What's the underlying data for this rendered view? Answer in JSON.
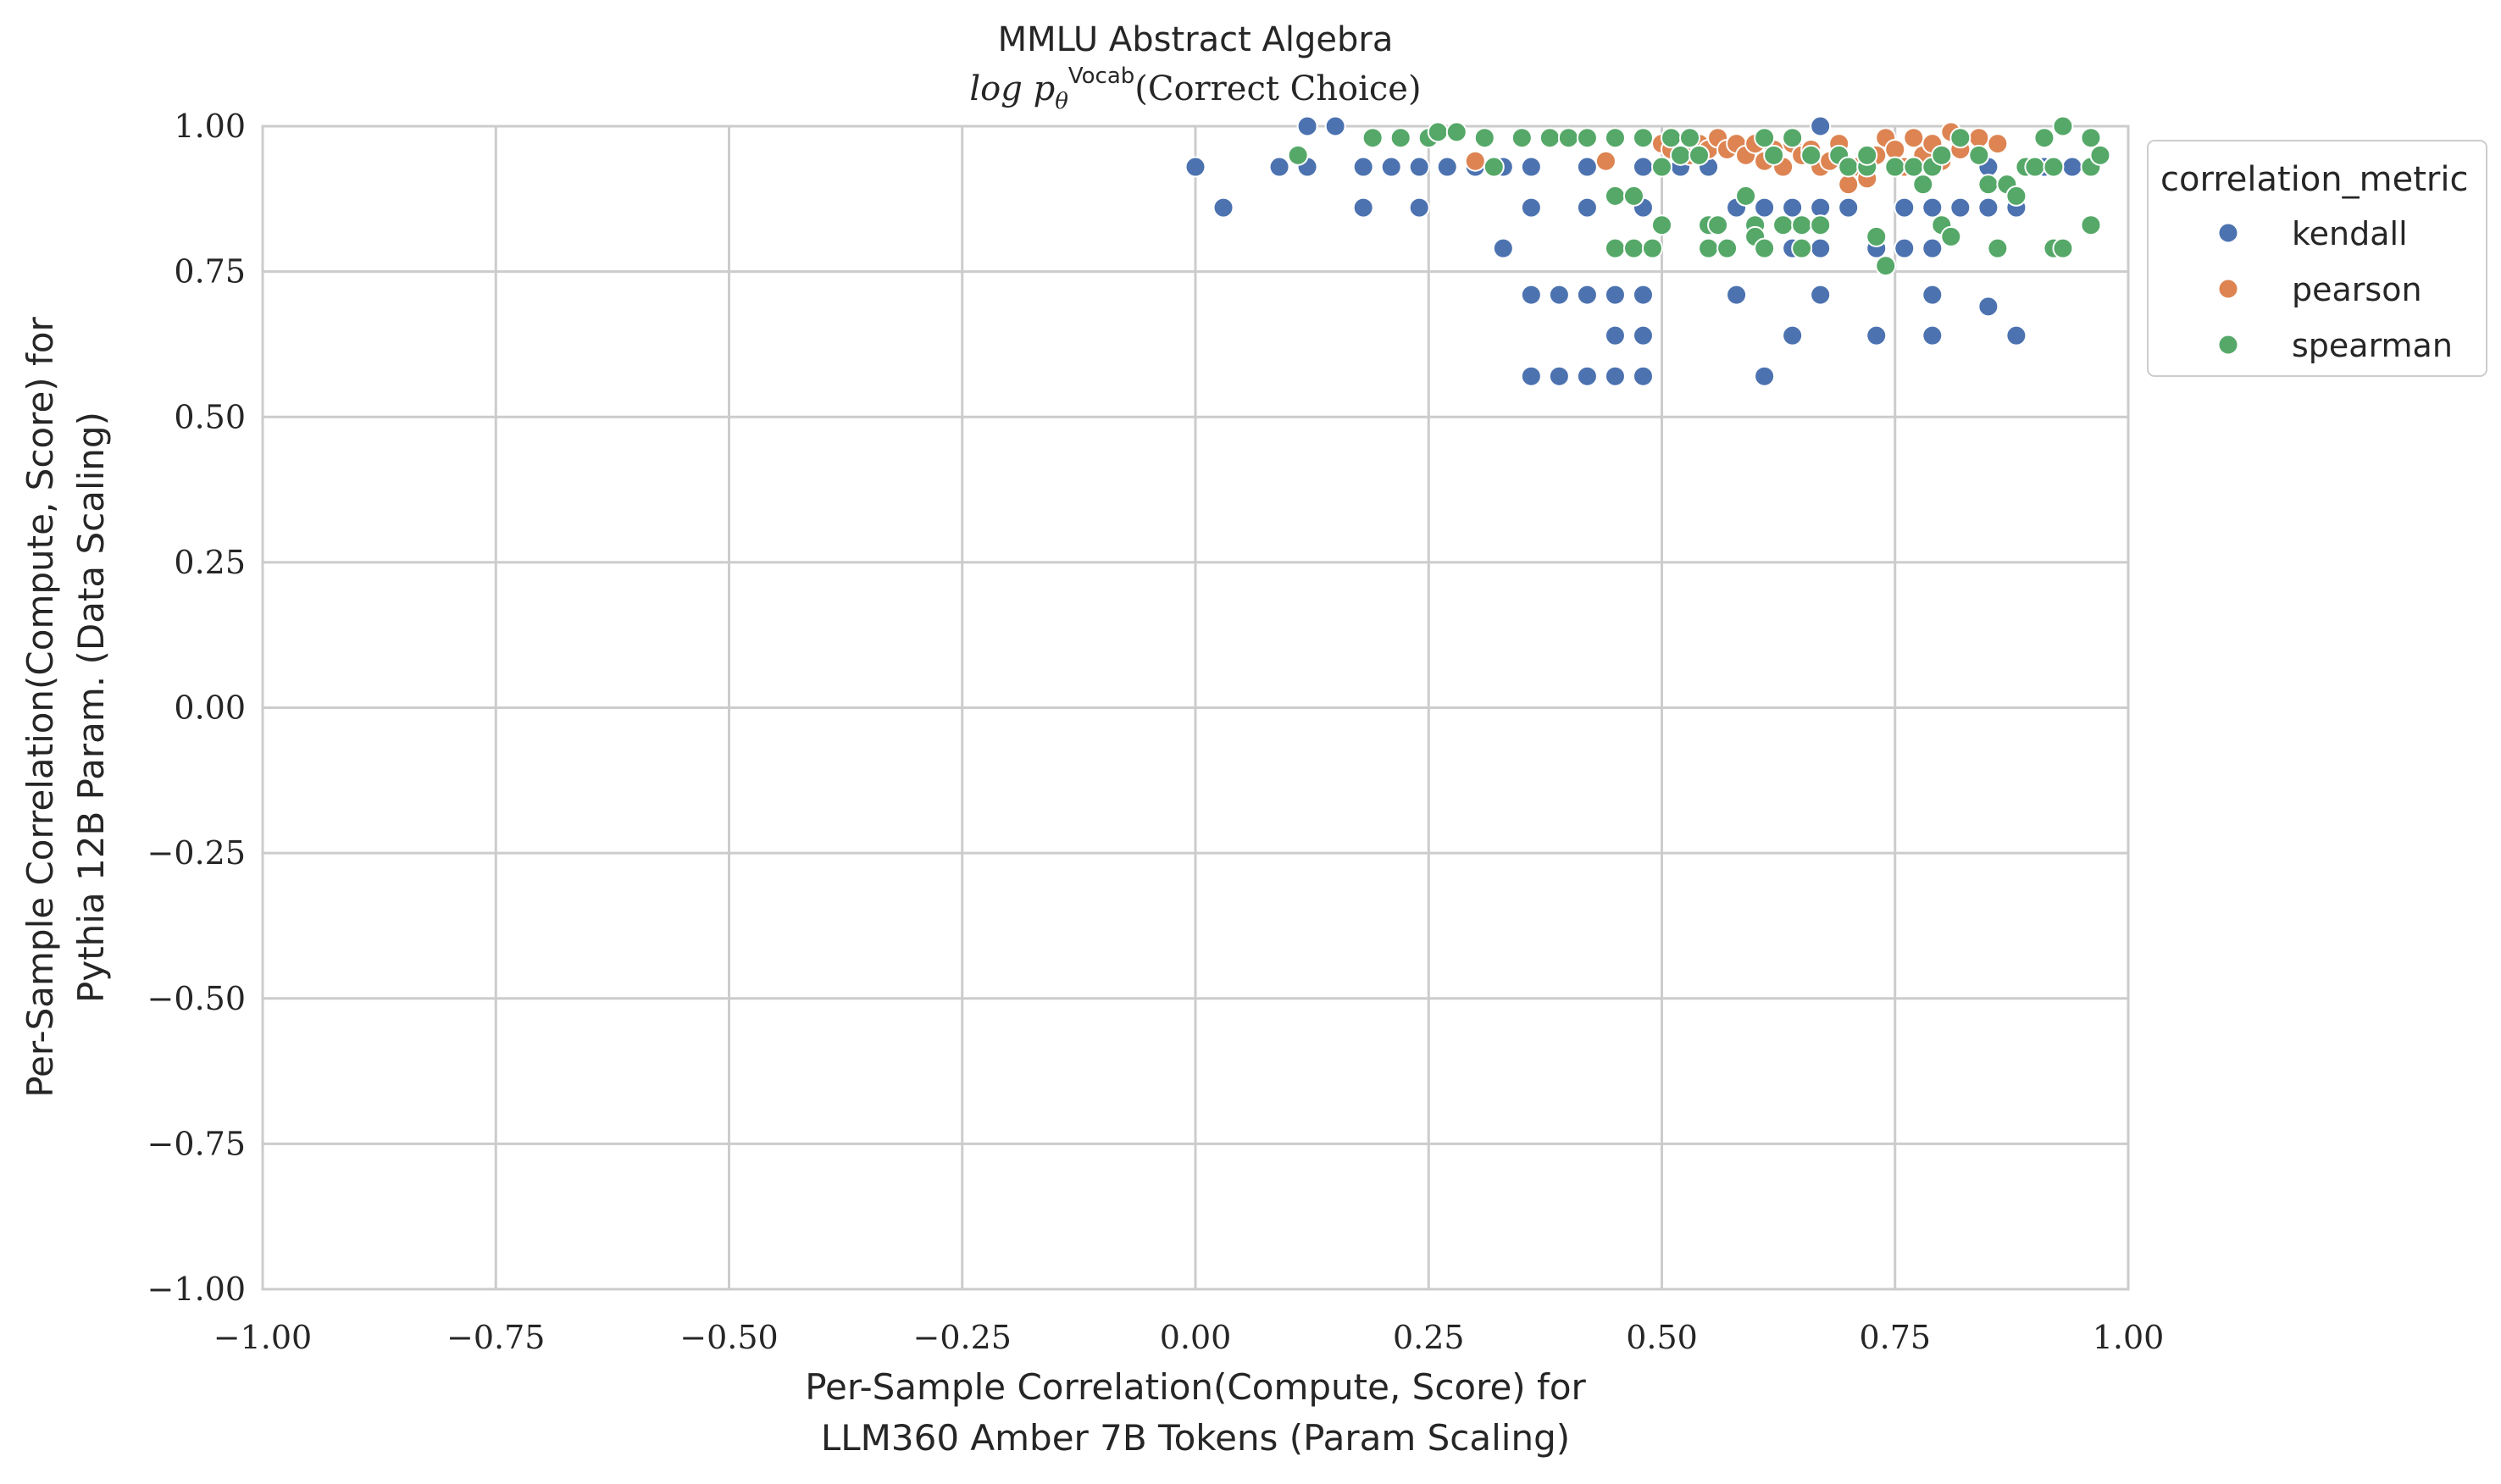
{
  "chart_data": {
    "type": "scatter",
    "title": "MMLU Abstract Algebra",
    "subtitle": {
      "prefix": "log p",
      "subscript": "θ",
      "superscript": "Vocab",
      "suffix": "(Correct Choice)"
    },
    "xlabel": [
      "Per-Sample Correlation(Compute, Score) for",
      "LLM360 Amber 7B Tokens (Param Scaling)"
    ],
    "ylabel": [
      "Per-Sample Correlation(Compute, Score) for",
      "Pythia 12B Param. (Data Scaling)"
    ],
    "xlim": [
      -1.0,
      1.0
    ],
    "ylim": [
      -1.0,
      1.0
    ],
    "xticks": [
      -1.0,
      -0.75,
      -0.5,
      -0.25,
      0.0,
      0.25,
      0.5,
      0.75,
      1.0
    ],
    "yticks": [
      -1.0,
      -0.75,
      -0.5,
      -0.25,
      0.0,
      0.25,
      0.5,
      0.75,
      1.0
    ],
    "xtick_labels": [
      "−1.00",
      "−0.75",
      "−0.50",
      "−0.25",
      "0.00",
      "0.25",
      "0.50",
      "0.75",
      "1.00"
    ],
    "ytick_labels": [
      "−1.00",
      "−0.75",
      "−0.50",
      "−0.25",
      "0.00",
      "0.25",
      "0.50",
      "0.75",
      "1.00"
    ],
    "grid": true,
    "legend": {
      "title": "correlation_metric",
      "placement": "outside-right-top"
    },
    "series": [
      {
        "name": "kendall",
        "color": "#4c72b0",
        "points": [
          [
            0.0,
            0.93
          ],
          [
            0.03,
            0.86
          ],
          [
            0.09,
            0.93
          ],
          [
            0.12,
            0.93
          ],
          [
            0.12,
            1.0
          ],
          [
            0.15,
            1.0
          ],
          [
            0.18,
            0.93
          ],
          [
            0.18,
            0.86
          ],
          [
            0.21,
            0.93
          ],
          [
            0.24,
            0.93
          ],
          [
            0.24,
            0.86
          ],
          [
            0.27,
            0.93
          ],
          [
            0.3,
            0.93
          ],
          [
            0.33,
            0.93
          ],
          [
            0.33,
            0.79
          ],
          [
            0.36,
            0.93
          ],
          [
            0.36,
            0.86
          ],
          [
            0.36,
            0.71
          ],
          [
            0.36,
            0.57
          ],
          [
            0.39,
            0.71
          ],
          [
            0.39,
            0.57
          ],
          [
            0.42,
            0.93
          ],
          [
            0.42,
            0.86
          ],
          [
            0.42,
            0.71
          ],
          [
            0.42,
            0.57
          ],
          [
            0.45,
            0.71
          ],
          [
            0.45,
            0.64
          ],
          [
            0.45,
            0.57
          ],
          [
            0.48,
            0.93
          ],
          [
            0.48,
            0.86
          ],
          [
            0.48,
            0.71
          ],
          [
            0.48,
            0.64
          ],
          [
            0.48,
            0.57
          ],
          [
            0.52,
            0.93
          ],
          [
            0.55,
            0.93
          ],
          [
            0.58,
            0.86
          ],
          [
            0.58,
            0.71
          ],
          [
            0.61,
            0.86
          ],
          [
            0.61,
            0.79
          ],
          [
            0.61,
            0.57
          ],
          [
            0.64,
            0.86
          ],
          [
            0.64,
            0.79
          ],
          [
            0.64,
            0.64
          ],
          [
            0.67,
            0.86
          ],
          [
            0.67,
            0.79
          ],
          [
            0.67,
            0.71
          ],
          [
            0.67,
            1.0
          ],
          [
            0.7,
            0.86
          ],
          [
            0.73,
            0.79
          ],
          [
            0.73,
            0.64
          ],
          [
            0.76,
            0.86
          ],
          [
            0.76,
            0.79
          ],
          [
            0.79,
            0.86
          ],
          [
            0.79,
            0.79
          ],
          [
            0.79,
            0.71
          ],
          [
            0.79,
            0.64
          ],
          [
            0.82,
            0.86
          ],
          [
            0.85,
            0.93
          ],
          [
            0.85,
            0.86
          ],
          [
            0.85,
            0.69
          ],
          [
            0.88,
            0.86
          ],
          [
            0.88,
            0.64
          ],
          [
            0.91,
            0.93
          ],
          [
            0.94,
            0.93
          ]
        ]
      },
      {
        "name": "pearson",
        "color": "#dd8452",
        "points": [
          [
            0.3,
            0.94
          ],
          [
            0.44,
            0.94
          ],
          [
            0.5,
            0.97
          ],
          [
            0.51,
            0.96
          ],
          [
            0.53,
            0.95
          ],
          [
            0.54,
            0.97
          ],
          [
            0.55,
            0.96
          ],
          [
            0.56,
            0.98
          ],
          [
            0.57,
            0.96
          ],
          [
            0.58,
            0.97
          ],
          [
            0.59,
            0.95
          ],
          [
            0.6,
            0.97
          ],
          [
            0.61,
            0.94
          ],
          [
            0.62,
            0.96
          ],
          [
            0.63,
            0.93
          ],
          [
            0.64,
            0.97
          ],
          [
            0.65,
            0.95
          ],
          [
            0.66,
            0.96
          ],
          [
            0.67,
            0.93
          ],
          [
            0.68,
            0.94
          ],
          [
            0.69,
            0.97
          ],
          [
            0.7,
            0.9
          ],
          [
            0.71,
            0.93
          ],
          [
            0.72,
            0.91
          ],
          [
            0.73,
            0.95
          ],
          [
            0.74,
            0.98
          ],
          [
            0.75,
            0.96
          ],
          [
            0.76,
            0.93
          ],
          [
            0.77,
            0.98
          ],
          [
            0.78,
            0.95
          ],
          [
            0.79,
            0.97
          ],
          [
            0.8,
            0.94
          ],
          [
            0.81,
            0.99
          ],
          [
            0.82,
            0.96
          ],
          [
            0.84,
            0.98
          ],
          [
            0.86,
            0.97
          ]
        ]
      },
      {
        "name": "spearman",
        "color": "#55a868",
        "points": [
          [
            0.11,
            0.95
          ],
          [
            0.19,
            0.98
          ],
          [
            0.22,
            0.98
          ],
          [
            0.25,
            0.98
          ],
          [
            0.26,
            0.99
          ],
          [
            0.28,
            0.99
          ],
          [
            0.31,
            0.98
          ],
          [
            0.32,
            0.93
          ],
          [
            0.35,
            0.98
          ],
          [
            0.38,
            0.98
          ],
          [
            0.4,
            0.98
          ],
          [
            0.42,
            0.98
          ],
          [
            0.45,
            0.98
          ],
          [
            0.45,
            0.88
          ],
          [
            0.45,
            0.79
          ],
          [
            0.47,
            0.88
          ],
          [
            0.47,
            0.79
          ],
          [
            0.48,
            0.98
          ],
          [
            0.49,
            0.79
          ],
          [
            0.5,
            0.83
          ],
          [
            0.5,
            0.93
          ],
          [
            0.51,
            0.98
          ],
          [
            0.52,
            0.95
          ],
          [
            0.53,
            0.98
          ],
          [
            0.54,
            0.95
          ],
          [
            0.55,
            0.83
          ],
          [
            0.55,
            0.79
          ],
          [
            0.56,
            0.83
          ],
          [
            0.57,
            0.79
          ],
          [
            0.59,
            0.88
          ],
          [
            0.6,
            0.83
          ],
          [
            0.6,
            0.81
          ],
          [
            0.61,
            0.79
          ],
          [
            0.61,
            0.98
          ],
          [
            0.62,
            0.95
          ],
          [
            0.63,
            0.83
          ],
          [
            0.64,
            0.98
          ],
          [
            0.65,
            0.83
          ],
          [
            0.65,
            0.79
          ],
          [
            0.66,
            0.95
          ],
          [
            0.67,
            0.83
          ],
          [
            0.69,
            0.95
          ],
          [
            0.7,
            0.93
          ],
          [
            0.72,
            0.93
          ],
          [
            0.72,
            0.95
          ],
          [
            0.73,
            0.81
          ],
          [
            0.74,
            0.76
          ],
          [
            0.75,
            0.93
          ],
          [
            0.77,
            0.93
          ],
          [
            0.78,
            0.9
          ],
          [
            0.79,
            0.93
          ],
          [
            0.8,
            0.83
          ],
          [
            0.8,
            0.95
          ],
          [
            0.81,
            0.81
          ],
          [
            0.82,
            0.98
          ],
          [
            0.84,
            0.95
          ],
          [
            0.85,
            0.9
          ],
          [
            0.86,
            0.79
          ],
          [
            0.87,
            0.9
          ],
          [
            0.88,
            0.88
          ],
          [
            0.89,
            0.93
          ],
          [
            0.9,
            0.93
          ],
          [
            0.91,
            0.98
          ],
          [
            0.92,
            0.93
          ],
          [
            0.92,
            0.79
          ],
          [
            0.93,
            0.79
          ],
          [
            0.93,
            1.0
          ],
          [
            0.96,
            0.98
          ],
          [
            0.96,
            0.93
          ],
          [
            0.96,
            0.83
          ],
          [
            0.97,
            0.95
          ]
        ]
      }
    ]
  }
}
